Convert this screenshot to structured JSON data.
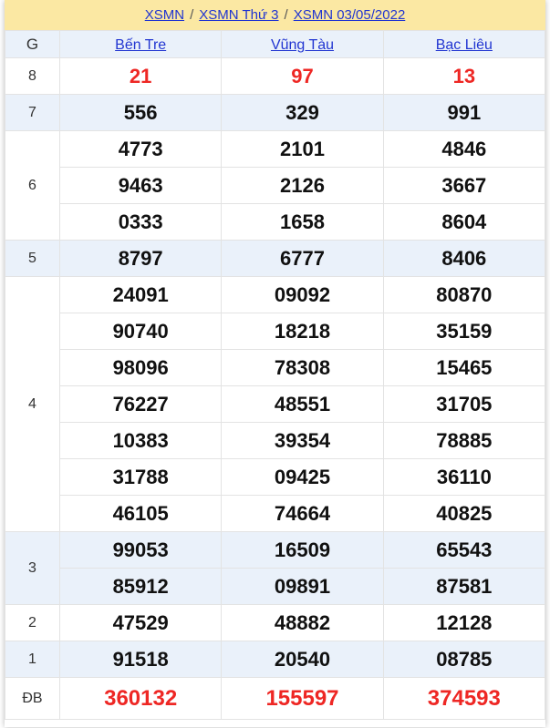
{
  "breadcrumb": {
    "items": [
      "XSMN",
      "XSMN Thứ 3",
      "XSMN 03/05/2022"
    ],
    "separator": "/"
  },
  "table": {
    "prize_header": "G",
    "provinces": [
      "Bến Tre",
      "Vũng Tàu",
      "Bạc Liêu"
    ],
    "rows": [
      {
        "prize": "8",
        "red": true,
        "values": [
          [
            "21"
          ],
          [
            "97"
          ],
          [
            "13"
          ]
        ]
      },
      {
        "prize": "7",
        "red": false,
        "values": [
          [
            "556"
          ],
          [
            "329"
          ],
          [
            "991"
          ]
        ]
      },
      {
        "prize": "6",
        "red": false,
        "values": [
          [
            "4773",
            "9463",
            "0333"
          ],
          [
            "2101",
            "2126",
            "1658"
          ],
          [
            "4846",
            "3667",
            "8604"
          ]
        ]
      },
      {
        "prize": "5",
        "red": false,
        "values": [
          [
            "8797"
          ],
          [
            "6777"
          ],
          [
            "8406"
          ]
        ]
      },
      {
        "prize": "4",
        "red": false,
        "values": [
          [
            "24091",
            "90740",
            "98096",
            "76227",
            "10383",
            "31788",
            "46105"
          ],
          [
            "09092",
            "18218",
            "78308",
            "48551",
            "39354",
            "09425",
            "74664"
          ],
          [
            "80870",
            "35159",
            "15465",
            "31705",
            "78885",
            "36110",
            "40825"
          ]
        ]
      },
      {
        "prize": "3",
        "red": false,
        "values": [
          [
            "99053",
            "85912"
          ],
          [
            "16509",
            "09891"
          ],
          [
            "65543",
            "87581"
          ]
        ]
      },
      {
        "prize": "2",
        "red": false,
        "values": [
          [
            "47529"
          ],
          [
            "48882"
          ],
          [
            "12128"
          ]
        ]
      },
      {
        "prize": "1",
        "red": false,
        "values": [
          [
            "91518"
          ],
          [
            "20540"
          ],
          [
            "08785"
          ]
        ]
      },
      {
        "prize": "ĐB",
        "red": true,
        "db": true,
        "values": [
          [
            "360132"
          ],
          [
            "155597"
          ],
          [
            "374593"
          ]
        ]
      }
    ]
  },
  "colors": {
    "header_bg": "#fbe8a3",
    "row_alt": "#eaf1fa",
    "link_blue": "#2135d1",
    "red": "#ee2724",
    "border": "#e3e3e3"
  }
}
